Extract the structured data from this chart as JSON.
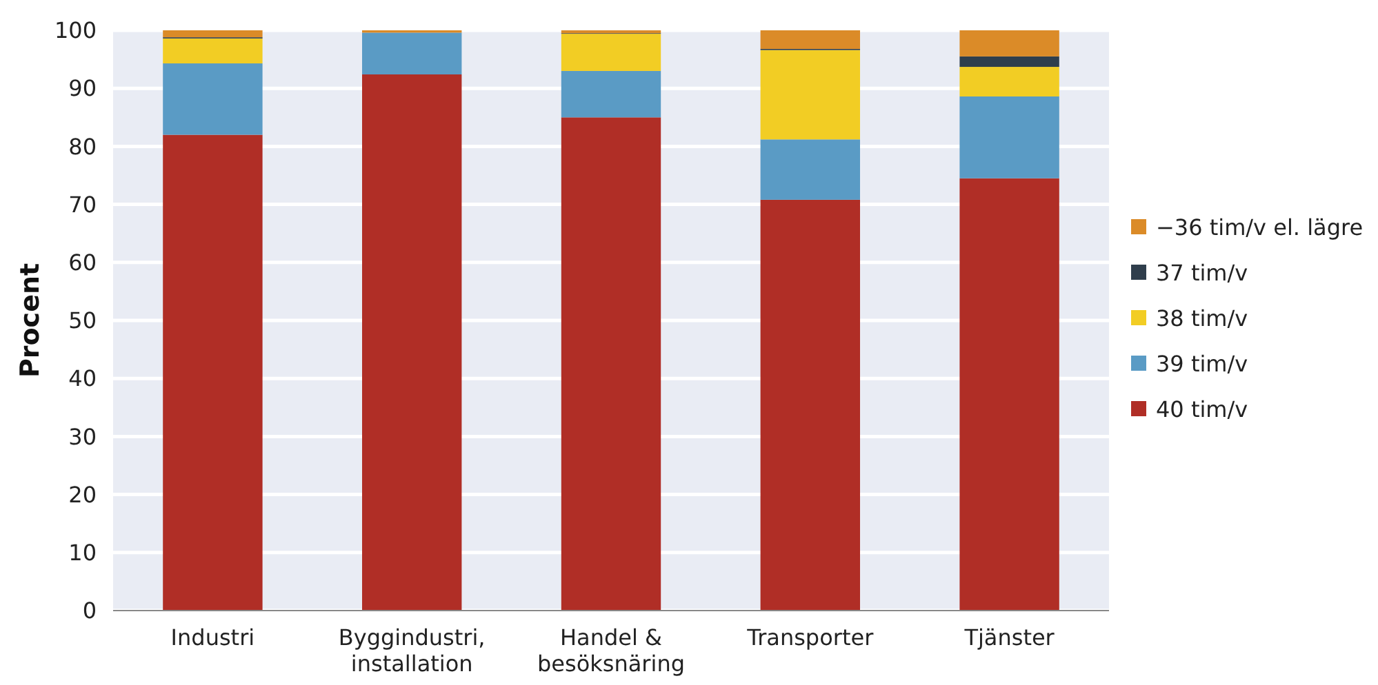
{
  "chart_data": {
    "type": "bar",
    "stacked": true,
    "ylabel": "Procent",
    "categories": [
      "Industri",
      "Byggindustri,\ninstallation",
      "Handel &\nbesöksnäring",
      "Transporter",
      "Tjänster"
    ],
    "series": [
      {
        "name": "40 tim/v",
        "color": "#b02e26",
        "values": [
          82.0,
          92.4,
          85.0,
          70.8,
          74.5
        ]
      },
      {
        "name": "39 tim/v",
        "color": "#5a9bc5",
        "values": [
          12.3,
          7.2,
          8.0,
          10.4,
          14.1
        ]
      },
      {
        "name": "38 tim/v",
        "color": "#f2cd24",
        "values": [
          4.3,
          0,
          6.4,
          15.4,
          5.1
        ]
      },
      {
        "name": "37 tim/v",
        "color": "#2f3e4c",
        "values": [
          0.2,
          0,
          0.1,
          0.2,
          1.8
        ]
      },
      {
        "name": "−36 tim/v el. lägre",
        "color": "#db8b28",
        "values": [
          1.2,
          0.4,
          0.5,
          3.2,
          4.5
        ]
      }
    ],
    "ylim": [
      0,
      100
    ],
    "yticks": [
      0,
      10,
      20,
      30,
      40,
      50,
      60,
      70,
      80,
      90,
      100
    ],
    "grid": "y",
    "legend": "right"
  }
}
